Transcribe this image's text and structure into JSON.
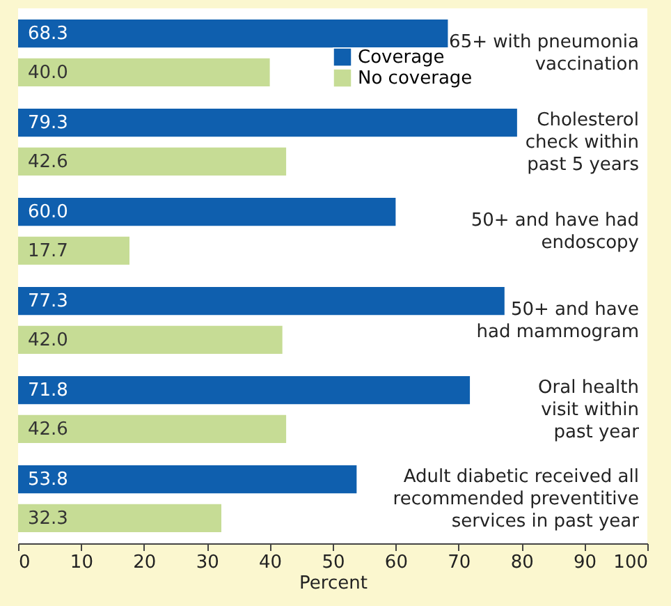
{
  "chart_data": {
    "type": "bar",
    "orientation": "horizontal",
    "categories": [
      "65+ with pneumonia vaccination",
      "Cholesterol check within past 5 years",
      "50+ and have had endoscopy",
      "50+ and have had mammogram",
      "Oral health visit within past year",
      "Adult diabetic received all recommended preventitive services in past year"
    ],
    "series": [
      {
        "name": "Coverage",
        "color": "#0f5fae",
        "values": [
          68.3,
          79.3,
          60.0,
          77.3,
          71.8,
          53.8
        ],
        "value_labels": [
          "68.3",
          "79.3",
          "60.0",
          "77.3",
          "71.8",
          "53.8"
        ]
      },
      {
        "name": "No coverage",
        "color": "#c6dc95",
        "values": [
          40.0,
          42.6,
          17.7,
          42.0,
          42.6,
          32.3
        ],
        "value_labels": [
          "40.0",
          "42.6",
          "17.7",
          "42.0",
          "42.6",
          "32.3"
        ]
      }
    ],
    "xlabel": "Percent",
    "xlim": [
      0,
      100
    ],
    "xticks": [
      0,
      10,
      20,
      30,
      40,
      50,
      60,
      70,
      80,
      90,
      100
    ],
    "grid": false,
    "legend": "top"
  }
}
